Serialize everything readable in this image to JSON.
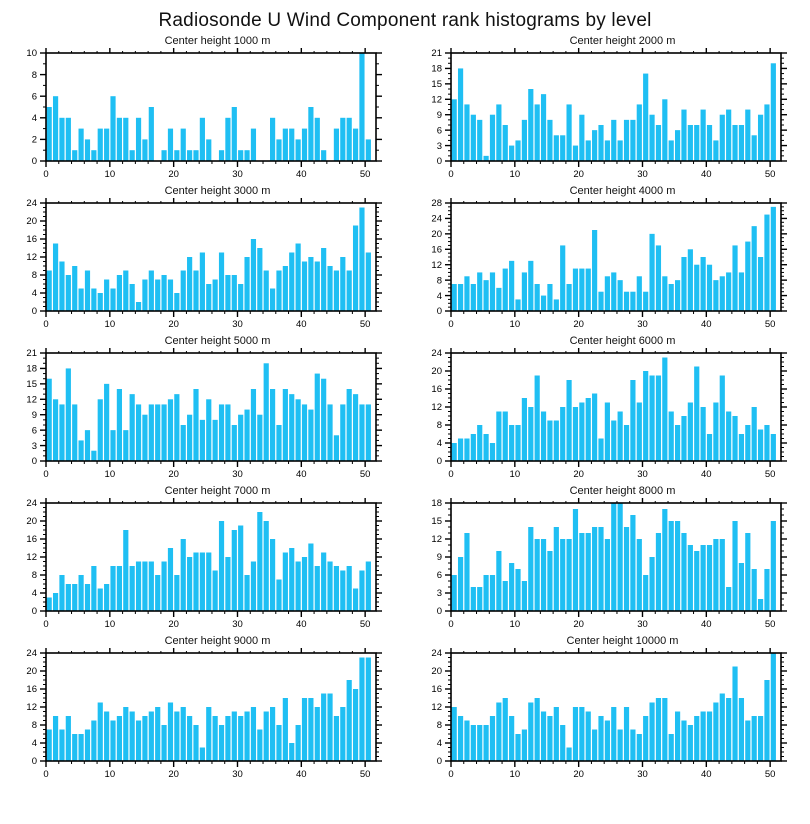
{
  "page_title": "Radiosonde U Wind Component rank histograms by level",
  "colors": {
    "bar": "#1FBFF3",
    "axis": "#000000",
    "background": "#ffffff"
  },
  "chart_data": [
    {
      "type": "bar",
      "title": "Center height 1000 m",
      "xlabel": "",
      "ylabel": "",
      "xlim": [
        0,
        51.7
      ],
      "ylim": [
        0,
        10
      ],
      "ystep": 2,
      "xticks": [
        0,
        10,
        20,
        30,
        40,
        50
      ],
      "x_minor_step": 2,
      "x_start": 1,
      "grid": false,
      "legend": "none",
      "values": [
        5,
        6,
        4,
        4,
        1,
        3,
        2,
        1,
        3,
        3,
        6,
        4,
        4,
        1,
        4,
        2,
        5,
        0,
        1,
        3,
        1,
        3,
        1,
        1,
        4,
        2,
        0,
        1,
        4,
        5,
        1,
        1,
        3,
        0,
        0,
        4,
        2,
        3,
        3,
        2,
        3,
        5,
        4,
        1,
        0,
        3,
        4,
        4,
        3,
        10,
        2
      ]
    },
    {
      "type": "bar",
      "title": "Center height 2000 m",
      "xlabel": "",
      "ylabel": "",
      "xlim": [
        0,
        51.7
      ],
      "ylim": [
        0,
        21
      ],
      "ystep": 3,
      "xticks": [
        0,
        10,
        20,
        30,
        40,
        50
      ],
      "x_minor_step": 2,
      "x_start": 1,
      "grid": false,
      "legend": "none",
      "values": [
        12,
        18,
        11,
        9,
        8,
        1,
        9,
        11,
        7,
        3,
        4,
        8,
        14,
        11,
        13,
        8,
        5,
        5,
        11,
        3,
        9,
        4,
        6,
        7,
        4,
        8,
        4,
        8,
        8,
        11,
        17,
        9,
        7,
        12,
        4,
        6,
        10,
        7,
        7,
        10,
        7,
        4,
        9,
        10,
        7,
        7,
        10,
        5,
        9,
        11,
        19
      ]
    },
    {
      "type": "bar",
      "title": "Center height 3000 m",
      "xlabel": "",
      "ylabel": "",
      "xlim": [
        0,
        51.7
      ],
      "ylim": [
        0,
        24
      ],
      "ystep": 4,
      "xticks": [
        0,
        10,
        20,
        30,
        40,
        50
      ],
      "x_minor_step": 2,
      "x_start": 1,
      "grid": false,
      "legend": "none",
      "values": [
        9,
        15,
        11,
        8,
        10,
        5,
        9,
        5,
        4,
        7,
        5,
        8,
        9,
        6,
        2,
        7,
        9,
        7,
        8,
        7,
        4,
        9,
        12,
        9,
        13,
        6,
        7,
        13,
        8,
        8,
        6,
        12,
        16,
        14,
        9,
        5,
        9,
        10,
        13,
        15,
        11,
        12,
        11,
        14,
        10,
        9,
        12,
        9,
        19,
        23,
        13
      ]
    },
    {
      "type": "bar",
      "title": "Center height 4000 m",
      "xlabel": "",
      "ylabel": "",
      "xlim": [
        0,
        51.7
      ],
      "ylim": [
        0,
        28
      ],
      "ystep": 4,
      "xticks": [
        0,
        10,
        20,
        30,
        40,
        50
      ],
      "x_minor_step": 2,
      "x_start": 1,
      "grid": false,
      "legend": "none",
      "values": [
        7,
        7,
        9,
        7,
        10,
        8,
        10,
        6,
        11,
        13,
        3,
        10,
        13,
        7,
        4,
        7,
        3,
        17,
        7,
        11,
        11,
        11,
        21,
        5,
        9,
        10,
        8,
        5,
        5,
        9,
        5,
        20,
        17,
        9,
        7,
        8,
        14,
        16,
        12,
        14,
        12,
        8,
        9,
        10,
        17,
        10,
        18,
        22,
        14,
        25,
        27
      ]
    },
    {
      "type": "bar",
      "title": "Center height 5000 m",
      "xlabel": "",
      "ylabel": "",
      "xlim": [
        0,
        51.7
      ],
      "ylim": [
        0,
        21
      ],
      "ystep": 3,
      "xticks": [
        0,
        10,
        20,
        30,
        40,
        50
      ],
      "x_minor_step": 2,
      "x_start": 1,
      "grid": false,
      "legend": "none",
      "values": [
        16,
        12,
        11,
        18,
        11,
        4,
        6,
        2,
        12,
        15,
        6,
        14,
        6,
        13,
        11,
        9,
        11,
        11,
        11,
        12,
        13,
        7,
        9,
        14,
        8,
        12,
        8,
        11,
        11,
        7,
        9,
        10,
        14,
        9,
        19,
        14,
        7,
        14,
        13,
        12,
        11,
        10,
        17,
        16,
        11,
        5,
        11,
        14,
        13,
        11,
        11
      ]
    },
    {
      "type": "bar",
      "title": "Center height 6000 m",
      "xlabel": "",
      "ylabel": "",
      "xlim": [
        0,
        51.7
      ],
      "ylim": [
        0,
        24
      ],
      "ystep": 4,
      "xticks": [
        0,
        10,
        20,
        30,
        40,
        50
      ],
      "x_minor_step": 2,
      "x_start": 1,
      "grid": false,
      "legend": "none",
      "values": [
        4,
        5,
        5,
        6,
        8,
        6,
        4,
        11,
        11,
        8,
        8,
        14,
        12,
        19,
        11,
        9,
        9,
        12,
        18,
        12,
        13,
        14,
        15,
        5,
        13,
        9,
        11,
        8,
        18,
        13,
        20,
        19,
        19,
        23,
        11,
        8,
        10,
        13,
        21,
        12,
        6,
        13,
        19,
        11,
        10,
        6,
        8,
        12,
        7,
        8,
        6
      ]
    },
    {
      "type": "bar",
      "title": "Center height 7000 m",
      "xlabel": "",
      "ylabel": "",
      "xlim": [
        0,
        51.7
      ],
      "ylim": [
        0,
        24
      ],
      "ystep": 4,
      "xticks": [
        0,
        10,
        20,
        30,
        40,
        50
      ],
      "x_minor_step": 2,
      "x_start": 1,
      "grid": false,
      "legend": "none",
      "values": [
        3,
        4,
        8,
        6,
        6,
        8,
        6,
        10,
        5,
        6,
        10,
        10,
        18,
        10,
        11,
        11,
        11,
        8,
        11,
        14,
        8,
        16,
        12,
        13,
        13,
        13,
        9,
        20,
        12,
        18,
        19,
        8,
        11,
        22,
        20,
        16,
        7,
        13,
        14,
        11,
        12,
        15,
        10,
        13,
        11,
        10,
        9,
        10,
        5,
        9,
        11
      ]
    },
    {
      "type": "bar",
      "title": "Center height 8000 m",
      "xlabel": "",
      "ylabel": "",
      "xlim": [
        0,
        51.7
      ],
      "ylim": [
        0,
        18
      ],
      "ystep": 3,
      "xticks": [
        0,
        10,
        20,
        30,
        40,
        50
      ],
      "x_minor_step": 2,
      "x_start": 1,
      "grid": false,
      "legend": "none",
      "values": [
        6,
        9,
        13,
        4,
        4,
        6,
        6,
        10,
        5,
        8,
        7,
        5,
        14,
        12,
        12,
        10,
        14,
        12,
        12,
        17,
        13,
        13,
        14,
        14,
        12,
        18,
        18,
        14,
        16,
        12,
        6,
        9,
        13,
        17,
        15,
        15,
        13,
        11,
        10,
        11,
        11,
        12,
        12,
        4,
        15,
        8,
        13,
        7,
        2,
        7,
        15
      ]
    },
    {
      "type": "bar",
      "title": "Center height 9000 m",
      "xlabel": "",
      "ylabel": "",
      "xlim": [
        0,
        51.7
      ],
      "ylim": [
        0,
        24
      ],
      "ystep": 4,
      "xticks": [
        0,
        10,
        20,
        30,
        40,
        50
      ],
      "x_minor_step": 2,
      "x_start": 1,
      "grid": false,
      "legend": "none",
      "values": [
        7,
        10,
        7,
        10,
        6,
        6,
        7,
        9,
        13,
        11,
        9,
        10,
        12,
        11,
        9,
        10,
        11,
        12,
        8,
        13,
        11,
        12,
        10,
        8,
        3,
        12,
        10,
        8,
        10,
        11,
        10,
        11,
        12,
        7,
        11,
        12,
        8,
        14,
        4,
        8,
        14,
        14,
        12,
        15,
        15,
        10,
        12,
        18,
        16,
        23,
        23
      ]
    },
    {
      "type": "bar",
      "title": "Center height 10000 m",
      "xlabel": "",
      "ylabel": "",
      "xlim": [
        0,
        51.7
      ],
      "ylim": [
        0,
        24
      ],
      "ystep": 4,
      "xticks": [
        0,
        10,
        20,
        30,
        40,
        50
      ],
      "x_minor_step": 2,
      "x_start": 1,
      "grid": false,
      "legend": "none",
      "values": [
        12,
        10,
        9,
        8,
        8,
        8,
        10,
        13,
        14,
        10,
        6,
        7,
        13,
        14,
        11,
        10,
        12,
        8,
        3,
        12,
        12,
        11,
        7,
        10,
        9,
        12,
        7,
        12,
        7,
        6,
        10,
        13,
        14,
        14,
        6,
        11,
        9,
        8,
        10,
        11,
        11,
        13,
        15,
        14,
        21,
        14,
        9,
        10,
        10,
        18,
        24
      ]
    }
  ]
}
